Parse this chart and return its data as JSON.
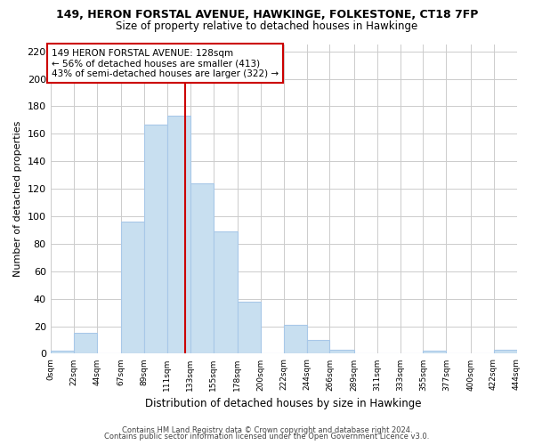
{
  "title": "149, HERON FORSTAL AVENUE, HAWKINGE, FOLKESTONE, CT18 7FP",
  "subtitle": "Size of property relative to detached houses in Hawkinge",
  "xlabel": "Distribution of detached houses by size in Hawkinge",
  "ylabel": "Number of detached properties",
  "bar_color": "#c8dff0",
  "bar_edge_color": "#a8c8e8",
  "vline_x": 128,
  "vline_color": "#cc0000",
  "annotation_line1": "149 HERON FORSTAL AVENUE: 128sqm",
  "annotation_line2": "← 56% of detached houses are smaller (413)",
  "annotation_line3": "43% of semi-detached houses are larger (322) →",
  "bin_edges": [
    0,
    22,
    44,
    67,
    89,
    111,
    133,
    155,
    178,
    200,
    222,
    244,
    266,
    289,
    311,
    333,
    355,
    377,
    400,
    422,
    444
  ],
  "bin_labels": [
    "0sqm",
    "22sqm",
    "44sqm",
    "67sqm",
    "89sqm",
    "111sqm",
    "133sqm",
    "155sqm",
    "178sqm",
    "200sqm",
    "222sqm",
    "244sqm",
    "266sqm",
    "289sqm",
    "311sqm",
    "333sqm",
    "355sqm",
    "377sqm",
    "400sqm",
    "422sqm",
    "444sqm"
  ],
  "counts": [
    2,
    15,
    0,
    96,
    167,
    173,
    124,
    89,
    38,
    0,
    21,
    10,
    3,
    0,
    0,
    0,
    2,
    0,
    0,
    3
  ],
  "ylim": [
    0,
    225
  ],
  "yticks": [
    0,
    20,
    40,
    60,
    80,
    100,
    120,
    140,
    160,
    180,
    200,
    220
  ],
  "footer1": "Contains HM Land Registry data © Crown copyright and database right 2024.",
  "footer2": "Contains public sector information licensed under the Open Government Licence v3.0.",
  "background_color": "#ffffff",
  "grid_color": "#cccccc"
}
